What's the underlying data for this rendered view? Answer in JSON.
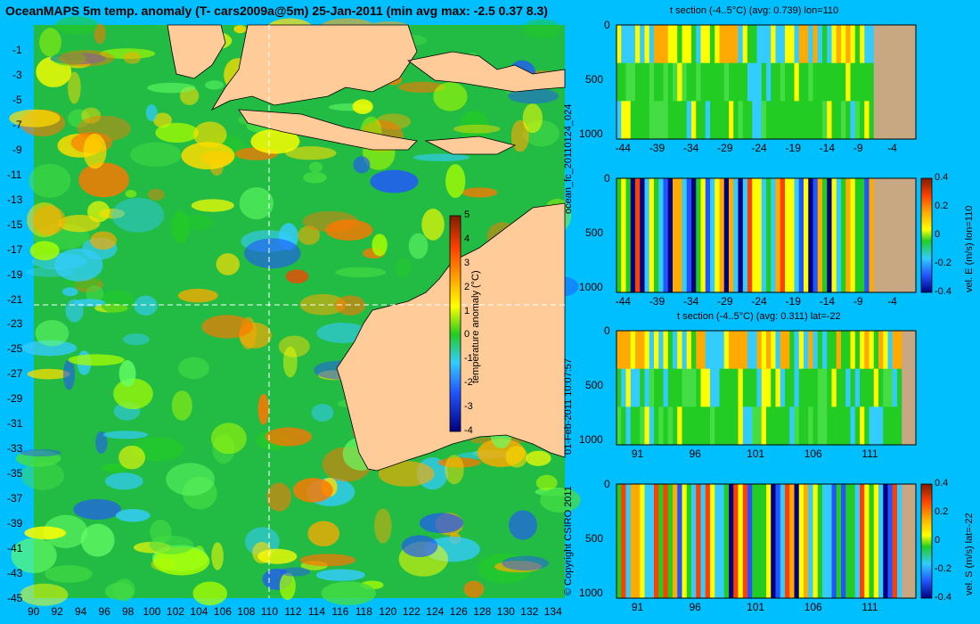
{
  "colors": {
    "background": "#00bfff",
    "land": "#ffcc99",
    "section_land": "#c8a882",
    "contour": "#40e0ff"
  },
  "chart_data": [
    {
      "type": "heatmap",
      "title": "OceanMAPS 5m temp. anomaly (T- cars2009a@5m) 25-Jan-2011 (min avg max: -2.5 0.37 8.3)",
      "xlabel": "",
      "ylabel": "",
      "x_ticks": [
        90,
        92,
        94,
        96,
        98,
        100,
        102,
        104,
        106,
        108,
        110,
        112,
        114,
        116,
        118,
        120,
        122,
        124,
        126,
        128,
        130,
        132,
        134
      ],
      "y_ticks": [
        -1,
        -3,
        -5,
        -7,
        -9,
        -11,
        -13,
        -15,
        -17,
        -19,
        -21,
        -23,
        -25,
        -27,
        -29,
        -31,
        -33,
        -35,
        -37,
        -39,
        -41,
        -43,
        -45
      ],
      "xlim": [
        90,
        135
      ],
      "ylim": [
        -45,
        1
      ],
      "colorbar": {
        "label": "temperature anomaly (°C)",
        "ticks": [
          5,
          4,
          3,
          2,
          1,
          0,
          -1,
          -2,
          -3,
          -4
        ],
        "range": [
          -4,
          5
        ]
      },
      "crosshair": {
        "lon": 110,
        "lat": -22
      }
    },
    {
      "type": "heatmap",
      "title": "t section (-4..5°C) (avg: 0.739) lon=110",
      "x_ticks": [
        -44,
        -39,
        -34,
        -29,
        -24,
        -19,
        -14,
        -9,
        -4
      ],
      "y_ticks": [
        0,
        500,
        1000
      ],
      "xlim": [
        -45,
        -1
      ],
      "ylim": [
        1050,
        0
      ]
    },
    {
      "type": "heatmap",
      "title": "",
      "x_ticks": [
        -44,
        -39,
        -34,
        -29,
        -24,
        -19,
        -14,
        -9,
        -4
      ],
      "y_ticks": [
        0,
        500,
        1000
      ],
      "xlim": [
        -45,
        -1
      ],
      "ylim": [
        1050,
        0
      ],
      "colorbar": {
        "label": "vel. E (m/s) lon=110",
        "ticks": [
          "0.4",
          "0.2",
          "0",
          "-0.2",
          "-0.4"
        ]
      }
    },
    {
      "type": "heatmap",
      "title": "t section (-4..5°C) (avg: 0.311) lat=-22",
      "x_ticks": [
        91,
        96,
        101,
        106,
        111
      ],
      "y_ticks": [
        0,
        500,
        1000
      ],
      "xlim": [
        89,
        115
      ],
      "ylim": [
        1050,
        0
      ]
    },
    {
      "type": "heatmap",
      "title": "",
      "x_ticks": [
        91,
        96,
        101,
        106,
        111
      ],
      "y_ticks": [
        0,
        500,
        1000
      ],
      "xlim": [
        89,
        115
      ],
      "ylim": [
        1050,
        0
      ],
      "colorbar": {
        "label": "vel. S (m/s) lat=-22",
        "ticks": [
          "0.4",
          "0.2",
          "0",
          "-0.2",
          "-0.4"
        ]
      }
    }
  ],
  "side_text": {
    "run_id": "ocean_fc_20110124_024",
    "timestamp": "01-Feb-2011 10:07:57",
    "copyright": "© Copyright CSIRO 2011"
  }
}
